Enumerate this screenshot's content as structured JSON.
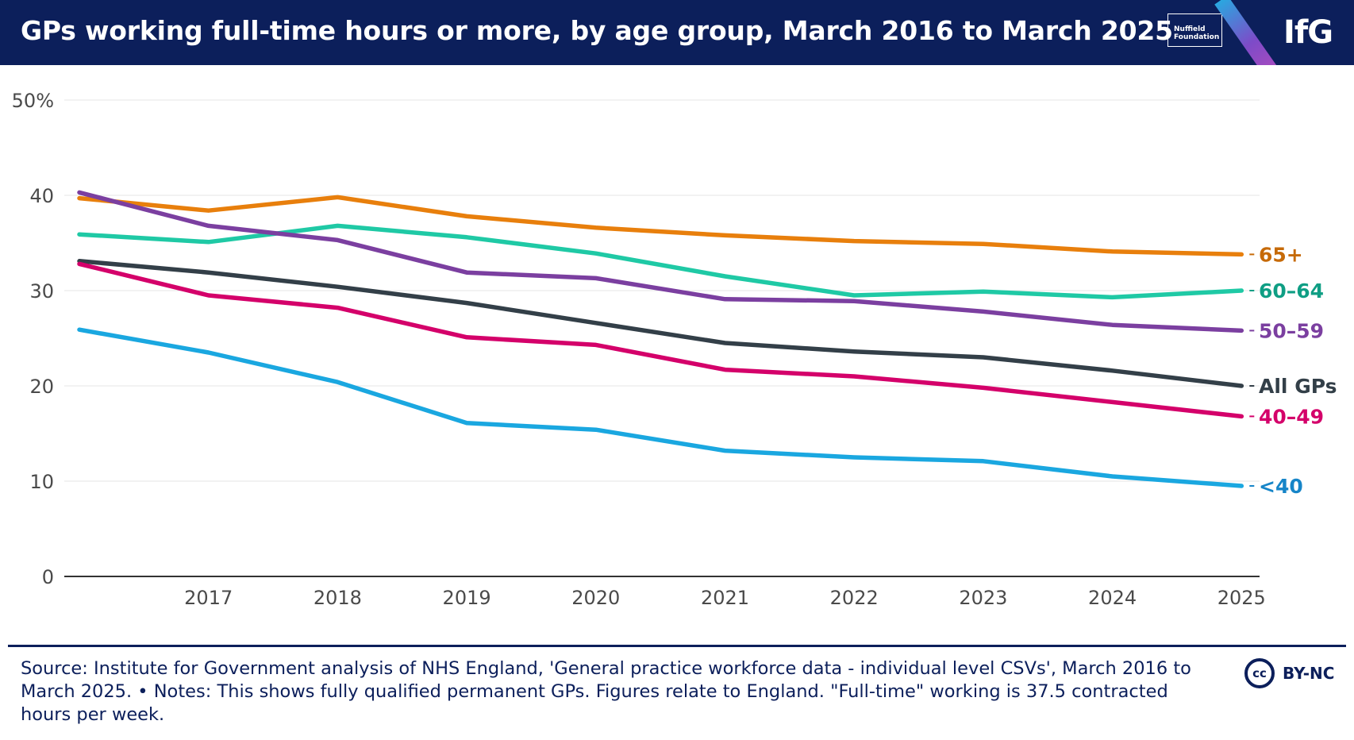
{
  "header": {
    "title": "GPs working full-time hours or more, by age group, March 2016 to March 2025",
    "partner_logo": "Nuffield Foundation",
    "brand_logo": "IfG"
  },
  "footer": {
    "source_text": "Source: Institute for Government analysis of NHS England, 'General practice workforce data - individual level CSVs', March 2016 to March 2025. • Notes: This shows fully qualified permanent GPs. Figures relate to England. \"Full-time\" working is 37.5 contracted hours per week.",
    "license_icon": "cc-icon",
    "license_label": "BY-NC"
  },
  "chart_data": {
    "type": "line",
    "title": "GPs working full-time hours or more, by age group, March 2016 to March 2025",
    "xlabel": "",
    "ylabel": "",
    "x": [
      2016,
      2017,
      2018,
      2019,
      2020,
      2021,
      2022,
      2023,
      2024,
      2025
    ],
    "x_tick_labels": [
      "2017",
      "2018",
      "2019",
      "2020",
      "2021",
      "2022",
      "2023",
      "2024",
      "2025"
    ],
    "y_tick_labels": [
      "0",
      "10",
      "20",
      "30",
      "40",
      "50%"
    ],
    "y_ticks": [
      0,
      10,
      20,
      30,
      40,
      50
    ],
    "ylim": [
      0,
      50
    ],
    "grid": true,
    "series": [
      {
        "name": "65+",
        "color": "#e87f0c",
        "values": [
          39.7,
          38.4,
          39.8,
          37.8,
          36.6,
          35.8,
          35.2,
          34.9,
          34.1,
          33.8
        ]
      },
      {
        "name": "60–64",
        "color": "#1fc9a5",
        "values": [
          35.9,
          35.1,
          36.8,
          35.6,
          33.9,
          31.5,
          29.5,
          29.9,
          29.3,
          30.0
        ]
      },
      {
        "name": "50–59",
        "color": "#7b3fa0",
        "values": [
          40.3,
          36.8,
          35.3,
          31.9,
          31.3,
          29.1,
          28.9,
          27.8,
          26.4,
          25.8
        ]
      },
      {
        "name": "All GPs",
        "color": "#333f48",
        "values": [
          33.1,
          31.9,
          30.4,
          28.7,
          26.6,
          24.5,
          23.6,
          23.0,
          21.6,
          20.0
        ]
      },
      {
        "name": "40–49",
        "color": "#d4006a",
        "values": [
          32.8,
          29.5,
          28.2,
          25.1,
          24.3,
          21.7,
          21.0,
          19.8,
          18.3,
          16.8
        ]
      },
      {
        "name": "<40",
        "color": "#1aa7e0",
        "values": [
          25.9,
          23.5,
          20.4,
          16.1,
          15.4,
          13.2,
          12.5,
          12.1,
          10.5,
          9.5
        ]
      }
    ],
    "label_colors": {
      "65+": "#c66a08",
      "60–64": "#0f9e84",
      "50–59": "#7b3fa0",
      "All GPs": "#333f48",
      "40–49": "#d4006a",
      "<40": "#1685c8"
    }
  }
}
